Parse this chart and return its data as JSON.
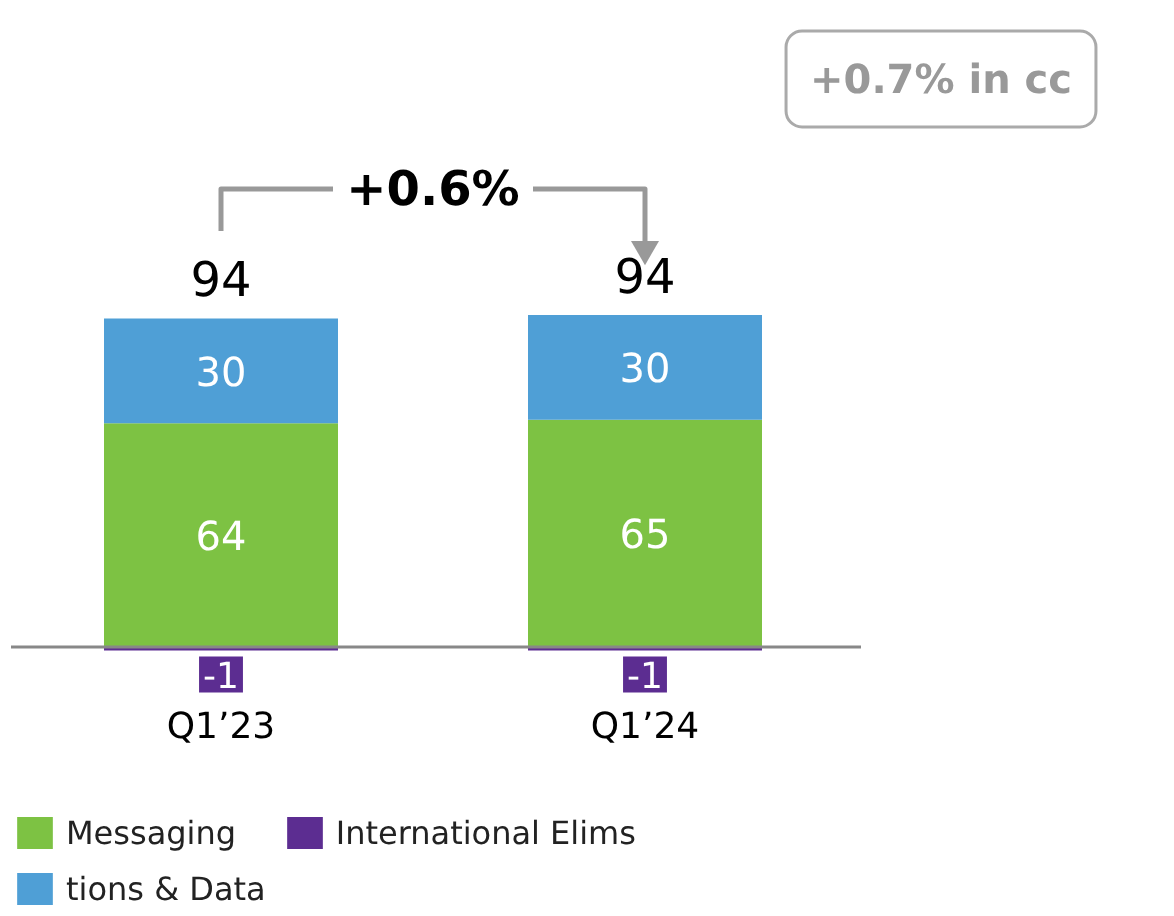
{
  "chart_data": {
    "type": "bar",
    "stacked": true,
    "categories": [
      "Q1’23",
      "Q1’24"
    ],
    "series": [
      {
        "name": "Messaging",
        "color": "#7dc243",
        "values": [
          64,
          65
        ]
      },
      {
        "name": "tions & Data",
        "color": "#4f9fd6",
        "values": [
          30,
          30
        ]
      },
      {
        "name": "International Elims",
        "color": "#5c2d91",
        "values": [
          -1,
          -1
        ]
      }
    ],
    "data_labels": true,
    "totals": [
      "94",
      "94"
    ],
    "annotations": [
      "+0.6%",
      "+0.7% in cc"
    ],
    "legend": "bottom left"
  }
}
